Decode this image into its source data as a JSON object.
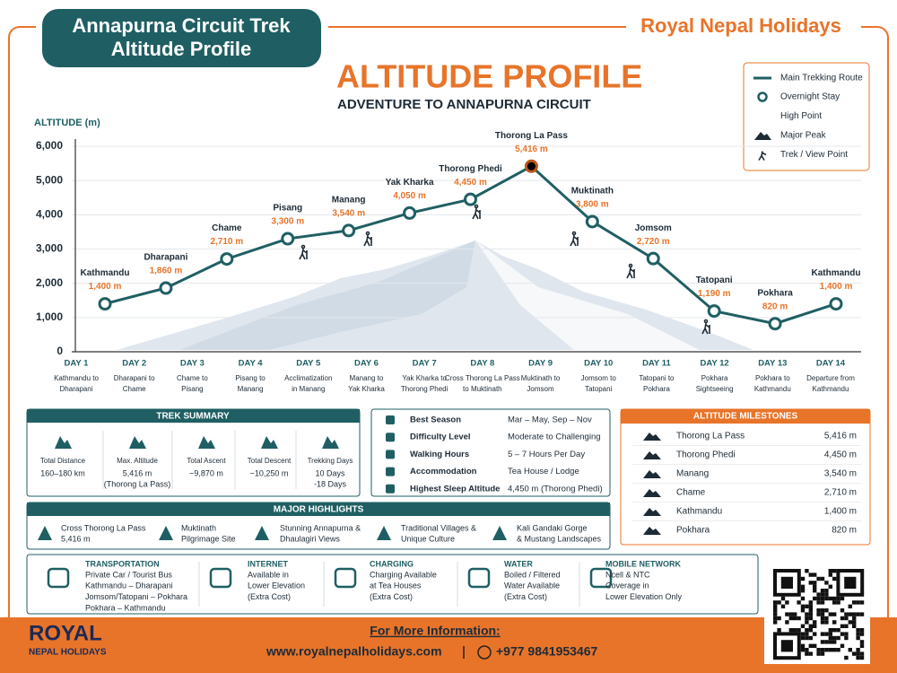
{
  "header": {
    "badge": [
      "Annapurna Circuit Trek",
      "Altitude Profile"
    ],
    "brand": "Royal Nepal Holidays",
    "title": "ALTITUDE PROFILE",
    "subtitle": "ADVENTURE TO ANNAPURNA CIRCUIT"
  },
  "chart_data": {
    "type": "line",
    "y_label": "ALTITUDE (m)",
    "categories": [
      "Kathmandu",
      "Dharapani",
      "Chame",
      "Pisang",
      "Manang",
      "Yak Kharka",
      "Thorong Phedi",
      "Thorong La Pass",
      "Muktinath",
      "Jomsom",
      "Tatopani",
      "Pokhara",
      "Kathmandu"
    ],
    "series": [
      {
        "name": "Main Trekking Route",
        "color": "#1f5f63",
        "values": [
          1400,
          1860,
          2710,
          3300,
          3540,
          4050,
          4450,
          5416,
          3800,
          2720,
          1190,
          820,
          1400
        ],
        "value_labels": [
          "1,400 m",
          "1,860 m",
          "2,710 m",
          "3,300 m",
          "3,540 m",
          "4,050 m",
          "4,450 m",
          "5,416 m",
          "3,800 m",
          "2,720 m",
          "1,190 m",
          "820 m",
          "1,400 m"
        ]
      }
    ],
    "high_point_color": "#e8742a",
    "legend_markers": [
      "Overnight Stay",
      "High Point",
      "Major Peak",
      "Trek / View Point"
    ],
    "ylim": [
      0,
      6000
    ],
    "yticks": [
      0,
      {
        "value": 1000,
        "label": "1,000"
      },
      {
        "value": 2000,
        "label": "2,000"
      },
      {
        "value": 3000,
        "label": "3,000"
      },
      {
        "value": 4000,
        "label": "4,000"
      },
      {
        "value": 5000,
        "label": "5,000"
      },
      {
        "value": 6000,
        "label": "6,000"
      }
    ],
    "grid": true
  },
  "days": [
    {
      "day": "DAY 1",
      "desc": [
        "Kathmandu to",
        "Dharapani"
      ]
    },
    {
      "day": "DAY 2",
      "desc": [
        "Dharapani to",
        "Chame"
      ]
    },
    {
      "day": "DAY 3",
      "desc": [
        "Chame to",
        "Pisang"
      ]
    },
    {
      "day": "DAY 4",
      "desc": [
        "Pisang to",
        "Manang"
      ]
    },
    {
      "day": "DAY 5",
      "desc": [
        "Acclimatization",
        "in Manang"
      ]
    },
    {
      "day": "DAY 6",
      "desc": [
        "Manang to",
        "Yak Kharka"
      ]
    },
    {
      "day": "DAY 7",
      "desc": [
        "Yak Kharka to",
        "Thorong Phedi"
      ]
    },
    {
      "day": "DAY 8",
      "desc": [
        "Cross Thorong La Pass",
        "to Muktinath"
      ]
    },
    {
      "day": "DAY 9",
      "desc": [
        "Muktinath to",
        "Jomsom"
      ]
    },
    {
      "day": "DAY 10",
      "desc": [
        "Jomsom to",
        "Tatopani"
      ]
    },
    {
      "day": "DAY 11",
      "desc": [
        "Tatopani to",
        "Pokhara"
      ]
    },
    {
      "day": "DAY 12",
      "desc": [
        "Pokhara",
        "Sightseeing"
      ]
    },
    {
      "day": "DAY 13",
      "desc": [
        "Pokhara to",
        "Kathmandu"
      ]
    },
    {
      "day": "DAY 14",
      "desc": [
        "Departure from",
        "Kathmandu"
      ]
    }
  ],
  "summary": {
    "title": "TREK SUMMARY",
    "items": [
      {
        "label": "Total Distance",
        "value": [
          "160–180 km"
        ]
      },
      {
        "label": "Max. Altitude",
        "value": [
          "5,416 m",
          "(Thorong La Pass)"
        ]
      },
      {
        "label": "Total Ascent",
        "value": [
          "~9,870 m"
        ]
      },
      {
        "label": "Total Descent",
        "value": [
          "~10,250 m"
        ]
      },
      {
        "label": "Trekking Days",
        "value": [
          "10 Days",
          "-18 Days"
        ]
      }
    ]
  },
  "info": [
    [
      "Best Season",
      "Mar – May, Sep – Nov"
    ],
    [
      "Difficulty Level",
      "Moderate to Challenging"
    ],
    [
      "Walking Hours",
      "5 – 7 Hours Per Day"
    ],
    [
      "Accommodation",
      "Tea House / Lodge"
    ],
    [
      "Highest Sleep Altitude",
      "4,450 m (Thorong Phedi)"
    ]
  ],
  "milestones": {
    "title": "ALTITUDE MILESTONES",
    "rows": [
      [
        "Thorong La Pass",
        "5,416 m"
      ],
      [
        "Thorong Phedi",
        "4,450 m"
      ],
      [
        "Manang",
        "3,540 m"
      ],
      [
        "Chame",
        "2,710 m"
      ],
      [
        "Kathmandu",
        "1,400 m"
      ],
      [
        "Pokhara",
        "820 m"
      ]
    ]
  },
  "highlights": {
    "title": "MAJOR HIGHLIGHTS",
    "items": [
      [
        "Cross Thorong La Pass",
        "5,416 m"
      ],
      [
        "Muktinath",
        "Pilgrimage Site"
      ],
      [
        "Stunning Annapurna &",
        "Dhaulagiri Views"
      ],
      [
        "Traditional Villages &",
        "Unique Culture"
      ],
      [
        "Kali Gandaki Gorge",
        "& Mustang Landscapes"
      ]
    ]
  },
  "facilities": [
    {
      "title": "TRANSPORTATION",
      "lines": [
        "Private Car / Tourist Bus",
        "Kathmandu – Dharapani",
        "Jomsom/Tatopani – Pokhara",
        "Pokhara – Kathmandu"
      ]
    },
    {
      "title": "INTERNET",
      "lines": [
        "Available in",
        "Lower Elevation",
        "(Extra Cost)"
      ]
    },
    {
      "title": "CHARGING",
      "lines": [
        "Charging Available",
        "at Tea Houses",
        "(Extra Cost)"
      ]
    },
    {
      "title": "WATER",
      "lines": [
        "Boiled / Filtered",
        "Water Available",
        "(Extra Cost)"
      ]
    },
    {
      "title": "MOBILE NETWORK",
      "lines": [
        "Ncell & NTC",
        "Coverage in",
        "Lower Elevation Only"
      ]
    }
  ],
  "footer": {
    "logo": [
      "ROYAL",
      "NEPAL HOLIDAYS"
    ],
    "info_title": "For More Information:",
    "website": "www.royalnepalholidays.com",
    "phone": "+977 9841953467"
  }
}
